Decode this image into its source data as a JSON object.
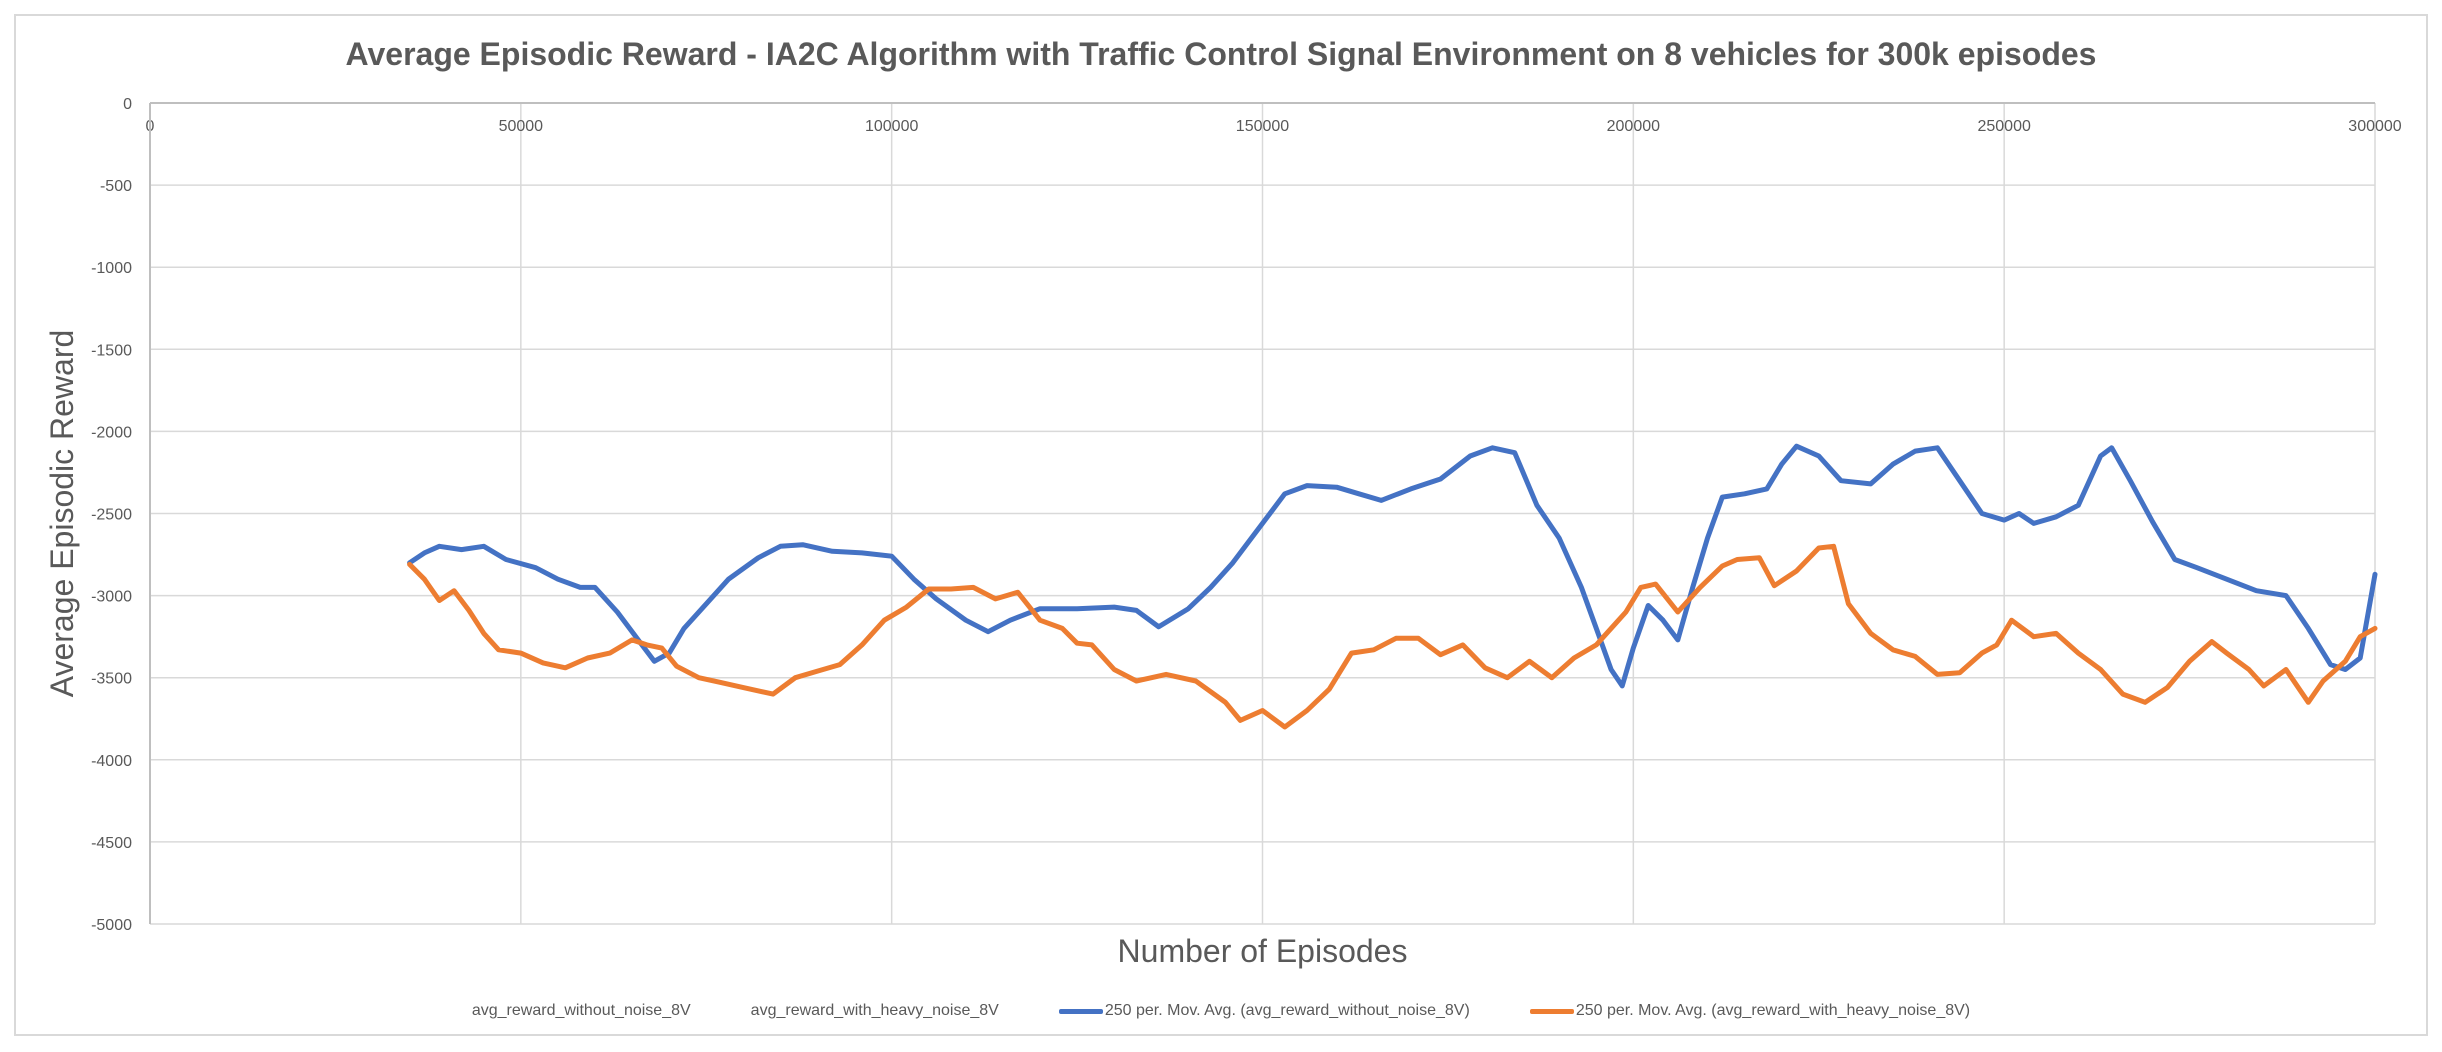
{
  "chart_data": {
    "type": "line",
    "title": "Average Episodic Reward - IA2C Algorithm with Traffic Control Signal Environment on 8 vehicles for 300k episodes",
    "xlabel": "Number of Episodes",
    "ylabel": "Average Episodic Reward",
    "xlim": [
      0,
      300000
    ],
    "ylim": [
      -5000,
      0
    ],
    "x_ticks": [
      0,
      50000,
      100000,
      150000,
      200000,
      250000,
      300000
    ],
    "y_ticks": [
      0,
      -500,
      -1000,
      -1500,
      -2000,
      -2500,
      -3000,
      -3500,
      -4000,
      -4500,
      -5000
    ],
    "x_axis_position": "top",
    "grid": true,
    "legend_position": "bottom",
    "series": [
      {
        "name": "avg_reward_without_noise_8V",
        "color": "#4472C4",
        "show_line": false,
        "points": []
      },
      {
        "name": "avg_reward_with_heavy_noise_8V",
        "color": "#ED7D31",
        "show_line": false,
        "points": []
      },
      {
        "name": "250 per. Mov. Avg. (avg_reward_without_noise_8V)",
        "color": "#4472C4",
        "show_line": true,
        "points": [
          [
            35000,
            -2800
          ],
          [
            37000,
            -2740
          ],
          [
            39000,
            -2700
          ],
          [
            42000,
            -2720
          ],
          [
            45000,
            -2700
          ],
          [
            48000,
            -2780
          ],
          [
            52000,
            -2830
          ],
          [
            55000,
            -2900
          ],
          [
            58000,
            -2950
          ],
          [
            60000,
            -2950
          ],
          [
            63000,
            -3100
          ],
          [
            66000,
            -3280
          ],
          [
            68000,
            -3400
          ],
          [
            70000,
            -3350
          ],
          [
            72000,
            -3200
          ],
          [
            75000,
            -3050
          ],
          [
            78000,
            -2900
          ],
          [
            82000,
            -2770
          ],
          [
            85000,
            -2700
          ],
          [
            88000,
            -2690
          ],
          [
            92000,
            -2730
          ],
          [
            96000,
            -2740
          ],
          [
            100000,
            -2760
          ],
          [
            103000,
            -2900
          ],
          [
            106000,
            -3020
          ],
          [
            110000,
            -3150
          ],
          [
            113000,
            -3220
          ],
          [
            116000,
            -3150
          ],
          [
            120000,
            -3080
          ],
          [
            125000,
            -3080
          ],
          [
            130000,
            -3070
          ],
          [
            133000,
            -3090
          ],
          [
            136000,
            -3190
          ],
          [
            140000,
            -3080
          ],
          [
            143000,
            -2950
          ],
          [
            146000,
            -2800
          ],
          [
            150000,
            -2560
          ],
          [
            153000,
            -2380
          ],
          [
            156000,
            -2330
          ],
          [
            160000,
            -2340
          ],
          [
            163000,
            -2380
          ],
          [
            166000,
            -2420
          ],
          [
            170000,
            -2350
          ],
          [
            174000,
            -2290
          ],
          [
            178000,
            -2150
          ],
          [
            181000,
            -2100
          ],
          [
            184000,
            -2130
          ],
          [
            187000,
            -2450
          ],
          [
            190000,
            -2650
          ],
          [
            193000,
            -2950
          ],
          [
            195000,
            -3200
          ],
          [
            197000,
            -3450
          ],
          [
            198500,
            -3550
          ],
          [
            200000,
            -3320
          ],
          [
            202000,
            -3060
          ],
          [
            204000,
            -3150
          ],
          [
            206000,
            -3270
          ],
          [
            208000,
            -2950
          ],
          [
            210000,
            -2650
          ],
          [
            212000,
            -2400
          ],
          [
            215000,
            -2380
          ],
          [
            218000,
            -2350
          ],
          [
            220000,
            -2200
          ],
          [
            222000,
            -2090
          ],
          [
            225000,
            -2150
          ],
          [
            228000,
            -2300
          ],
          [
            232000,
            -2320
          ],
          [
            235000,
            -2200
          ],
          [
            238000,
            -2120
          ],
          [
            241000,
            -2100
          ],
          [
            244000,
            -2300
          ],
          [
            247000,
            -2500
          ],
          [
            250000,
            -2540
          ],
          [
            252000,
            -2500
          ],
          [
            254000,
            -2560
          ],
          [
            257000,
            -2520
          ],
          [
            260000,
            -2450
          ],
          [
            263000,
            -2150
          ],
          [
            264500,
            -2100
          ],
          [
            267000,
            -2300
          ],
          [
            270000,
            -2550
          ],
          [
            273000,
            -2780
          ],
          [
            276000,
            -2830
          ],
          [
            280000,
            -2900
          ],
          [
            284000,
            -2970
          ],
          [
            288000,
            -3000
          ],
          [
            291000,
            -3200
          ],
          [
            294000,
            -3420
          ],
          [
            296000,
            -3450
          ],
          [
            298000,
            -3380
          ],
          [
            300000,
            -2870
          ]
        ]
      },
      {
        "name": "250 per. Mov. Avg. (avg_reward_with_heavy_noise_8V)",
        "color": "#ED7D31",
        "show_line": true,
        "points": [
          [
            35000,
            -2810
          ],
          [
            37000,
            -2900
          ],
          [
            39000,
            -3030
          ],
          [
            41000,
            -2970
          ],
          [
            43000,
            -3090
          ],
          [
            45000,
            -3230
          ],
          [
            47000,
            -3330
          ],
          [
            50000,
            -3350
          ],
          [
            53000,
            -3410
          ],
          [
            56000,
            -3440
          ],
          [
            59000,
            -3380
          ],
          [
            62000,
            -3350
          ],
          [
            65000,
            -3270
          ],
          [
            67000,
            -3300
          ],
          [
            69000,
            -3320
          ],
          [
            71000,
            -3430
          ],
          [
            74000,
            -3500
          ],
          [
            77000,
            -3530
          ],
          [
            80000,
            -3560
          ],
          [
            84000,
            -3600
          ],
          [
            87000,
            -3500
          ],
          [
            90000,
            -3460
          ],
          [
            93000,
            -3420
          ],
          [
            96000,
            -3300
          ],
          [
            99000,
            -3150
          ],
          [
            102000,
            -3070
          ],
          [
            105000,
            -2960
          ],
          [
            108000,
            -2960
          ],
          [
            111000,
            -2950
          ],
          [
            114000,
            -3020
          ],
          [
            117000,
            -2980
          ],
          [
            120000,
            -3150
          ],
          [
            123000,
            -3200
          ],
          [
            125000,
            -3290
          ],
          [
            127000,
            -3300
          ],
          [
            130000,
            -3450
          ],
          [
            133000,
            -3520
          ],
          [
            137000,
            -3480
          ],
          [
            141000,
            -3520
          ],
          [
            145000,
            -3650
          ],
          [
            147000,
            -3760
          ],
          [
            150000,
            -3700
          ],
          [
            153000,
            -3800
          ],
          [
            156000,
            -3700
          ],
          [
            159000,
            -3570
          ],
          [
            162000,
            -3350
          ],
          [
            165000,
            -3330
          ],
          [
            168000,
            -3260
          ],
          [
            171000,
            -3260
          ],
          [
            174000,
            -3360
          ],
          [
            177000,
            -3300
          ],
          [
            180000,
            -3440
          ],
          [
            183000,
            -3500
          ],
          [
            186000,
            -3400
          ],
          [
            189000,
            -3500
          ],
          [
            192000,
            -3380
          ],
          [
            195000,
            -3300
          ],
          [
            197000,
            -3200
          ],
          [
            199000,
            -3100
          ],
          [
            201000,
            -2950
          ],
          [
            203000,
            -2930
          ],
          [
            206000,
            -3100
          ],
          [
            209000,
            -2950
          ],
          [
            212000,
            -2820
          ],
          [
            214000,
            -2780
          ],
          [
            217000,
            -2770
          ],
          [
            219000,
            -2940
          ],
          [
            222000,
            -2850
          ],
          [
            225000,
            -2710
          ],
          [
            227000,
            -2700
          ],
          [
            229000,
            -3050
          ],
          [
            232000,
            -3230
          ],
          [
            235000,
            -3330
          ],
          [
            238000,
            -3370
          ],
          [
            241000,
            -3480
          ],
          [
            244000,
            -3470
          ],
          [
            247000,
            -3350
          ],
          [
            249000,
            -3300
          ],
          [
            251000,
            -3150
          ],
          [
            254000,
            -3250
          ],
          [
            257000,
            -3230
          ],
          [
            260000,
            -3350
          ],
          [
            263000,
            -3450
          ],
          [
            266000,
            -3600
          ],
          [
            269000,
            -3650
          ],
          [
            272000,
            -3560
          ],
          [
            275000,
            -3400
          ],
          [
            278000,
            -3280
          ],
          [
            280000,
            -3350
          ],
          [
            283000,
            -3450
          ],
          [
            285000,
            -3550
          ],
          [
            288000,
            -3450
          ],
          [
            291000,
            -3650
          ],
          [
            293000,
            -3520
          ],
          [
            296000,
            -3400
          ],
          [
            298000,
            -3250
          ],
          [
            300000,
            -3200
          ]
        ]
      }
    ]
  }
}
